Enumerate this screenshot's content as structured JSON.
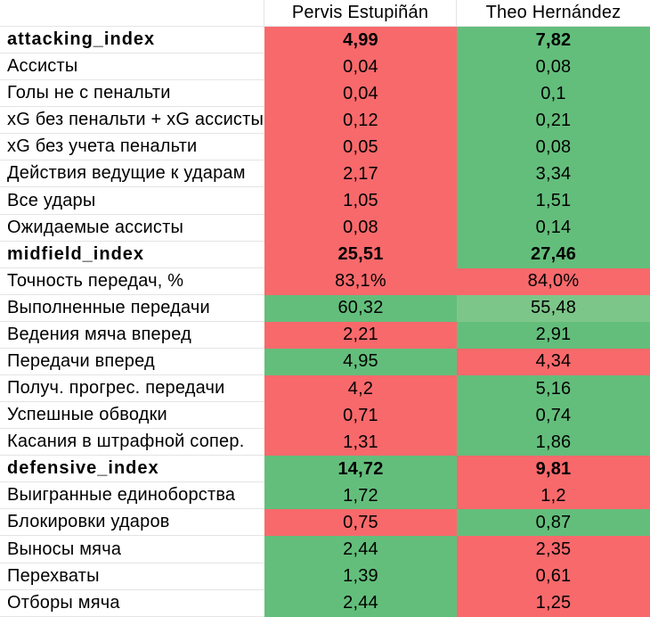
{
  "table": {
    "columns": [
      "",
      "Pervis Estupiñán",
      "Theo Hernández"
    ],
    "rows": [
      {
        "label": "attacking_index",
        "bold": true,
        "values": [
          "4,99",
          "7,82"
        ],
        "colors": [
          "red",
          "green"
        ]
      },
      {
        "label": "Ассисты",
        "bold": false,
        "values": [
          "0,04",
          "0,08"
        ],
        "colors": [
          "red",
          "green"
        ]
      },
      {
        "label": "Голы не с пенальти",
        "bold": false,
        "values": [
          "0,04",
          "0,1"
        ],
        "colors": [
          "red",
          "green"
        ]
      },
      {
        "label": "xG без пенальти + xG ассисты",
        "bold": false,
        "values": [
          "0,12",
          "0,21"
        ],
        "colors": [
          "red",
          "green"
        ]
      },
      {
        "label": "xG без учета пенальти",
        "bold": false,
        "values": [
          "0,05",
          "0,08"
        ],
        "colors": [
          "red",
          "green"
        ]
      },
      {
        "label": "Действия ведущие к ударам",
        "bold": false,
        "values": [
          "2,17",
          "3,34"
        ],
        "colors": [
          "red",
          "green"
        ]
      },
      {
        "label": "Все удары",
        "bold": false,
        "values": [
          "1,05",
          "1,51"
        ],
        "colors": [
          "red",
          "green"
        ]
      },
      {
        "label": "Ожидаемые ассисты",
        "bold": false,
        "values": [
          "0,08",
          "0,14"
        ],
        "colors": [
          "red",
          "green"
        ]
      },
      {
        "label": "midfield_index",
        "bold": true,
        "values": [
          "25,51",
          "27,46"
        ],
        "colors": [
          "red",
          "green"
        ]
      },
      {
        "label": "Точность передач, %",
        "bold": false,
        "values": [
          "83,1%",
          "84,0%"
        ],
        "colors": [
          "red",
          "red"
        ]
      },
      {
        "label": "Выполненные передачи",
        "bold": false,
        "values": [
          "60,32",
          "55,48"
        ],
        "colors": [
          "green",
          "green_light"
        ]
      },
      {
        "label": "Ведения мяча вперед",
        "bold": false,
        "values": [
          "2,21",
          "2,91"
        ],
        "colors": [
          "red",
          "green"
        ]
      },
      {
        "label": "Передачи вперед",
        "bold": false,
        "values": [
          "4,95",
          "4,34"
        ],
        "colors": [
          "green",
          "red"
        ]
      },
      {
        "label": "Получ. прогрес. передачи",
        "bold": false,
        "values": [
          "4,2",
          "5,16"
        ],
        "colors": [
          "red",
          "green"
        ]
      },
      {
        "label": "Успешные обводки",
        "bold": false,
        "values": [
          "0,71",
          "0,74"
        ],
        "colors": [
          "red",
          "green"
        ]
      },
      {
        "label": "Касания в штрафной сопер.",
        "bold": false,
        "values": [
          "1,31",
          "1,86"
        ],
        "colors": [
          "red",
          "green"
        ]
      },
      {
        "label": "defensive_index",
        "bold": true,
        "values": [
          "14,72",
          "9,81"
        ],
        "colors": [
          "green",
          "red"
        ]
      },
      {
        "label": "Выигранные единоборства",
        "bold": false,
        "values": [
          "1,72",
          "1,2"
        ],
        "colors": [
          "green",
          "red"
        ]
      },
      {
        "label": "Блокировки ударов",
        "bold": false,
        "values": [
          "0,75",
          "0,87"
        ],
        "colors": [
          "red",
          "green"
        ]
      },
      {
        "label": "Выносы мяча",
        "bold": false,
        "values": [
          "2,44",
          "2,35"
        ],
        "colors": [
          "green",
          "red"
        ]
      },
      {
        "label": "Перехваты",
        "bold": false,
        "values": [
          "1,39",
          "0,61"
        ],
        "colors": [
          "green",
          "red"
        ]
      },
      {
        "label": "Отборы мяча",
        "bold": false,
        "values": [
          "2,44",
          "1,25"
        ],
        "colors": [
          "green",
          "red"
        ]
      }
    ]
  },
  "colors": {
    "red": "#f8696b",
    "green": "#63be7b",
    "green_light": "#7dc689",
    "gridline": "#e4e4e4",
    "text": "#000000",
    "background": "#ffffff"
  },
  "chart_data": {
    "type": "table",
    "categories": [
      "attacking_index",
      "Ассисты",
      "Голы не с пенальти",
      "xG без пенальти + xG ассисты",
      "xG без учета пенальти",
      "Действия ведущие к ударам",
      "Все удары",
      "Ожидаемые ассисты",
      "midfield_index",
      "Точность передач, %",
      "Выполненные передачи",
      "Ведения мяча вперед",
      "Передачи вперед",
      "Получ. прогрес. передачи",
      "Успешные обводки",
      "Касания в штрафной сопер.",
      "defensive_index",
      "Выигранные единоборства",
      "Блокировки ударов",
      "Выносы мяча",
      "Перехваты",
      "Отборы мяча"
    ],
    "series": [
      {
        "name": "Pervis Estupiñán",
        "values": [
          4.99,
          0.04,
          0.04,
          0.12,
          0.05,
          2.17,
          1.05,
          0.08,
          25.51,
          83.1,
          60.32,
          2.21,
          4.95,
          4.2,
          0.71,
          1.31,
          14.72,
          1.72,
          0.75,
          2.44,
          1.39,
          2.44
        ]
      },
      {
        "name": "Theo Hernández",
        "values": [
          7.82,
          0.08,
          0.1,
          0.21,
          0.08,
          3.34,
          1.51,
          0.14,
          27.46,
          84.0,
          55.48,
          2.91,
          4.34,
          5.16,
          0.74,
          1.86,
          9.81,
          1.2,
          0.87,
          2.35,
          0.61,
          1.25
        ]
      }
    ],
    "cell_highlight": "red = worse / low percentile, green = better / high percentile, light green = slightly lower green"
  }
}
